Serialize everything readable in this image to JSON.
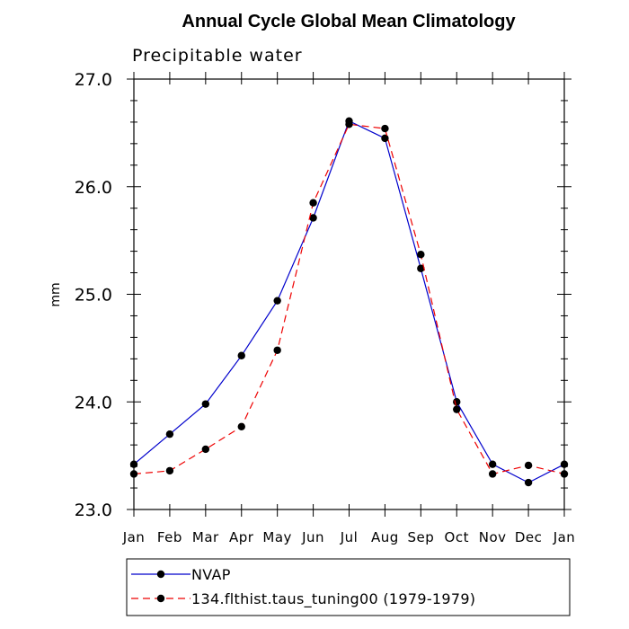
{
  "chart_data": {
    "type": "line",
    "title": "Annual Cycle Global Mean Climatology",
    "subtitle": "Precipitable water",
    "xlabel": "",
    "ylabel": "mm",
    "categories": [
      "Jan",
      "Feb",
      "Mar",
      "Apr",
      "May",
      "Jun",
      "Jul",
      "Aug",
      "Sep",
      "Oct",
      "Nov",
      "Dec",
      "Jan"
    ],
    "ylim": [
      23.0,
      27.0
    ],
    "yticks": [
      "23.0",
      "24.0",
      "25.0",
      "26.0",
      "27.0"
    ],
    "series": [
      {
        "name": "NVAP",
        "color": "#0000cc",
        "dash": "solid",
        "values": [
          23.42,
          23.7,
          23.98,
          24.43,
          24.94,
          25.71,
          26.61,
          26.45,
          25.24,
          24.0,
          23.42,
          23.25,
          23.42
        ]
      },
      {
        "name": "134.flthist.taus_tuning00 (1979-1979)",
        "color": "#ee0000",
        "dash": "dashed",
        "values": [
          23.33,
          23.36,
          23.56,
          23.77,
          24.48,
          25.85,
          26.58,
          26.54,
          25.37,
          23.93,
          23.33,
          23.41,
          23.33
        ]
      }
    ]
  }
}
